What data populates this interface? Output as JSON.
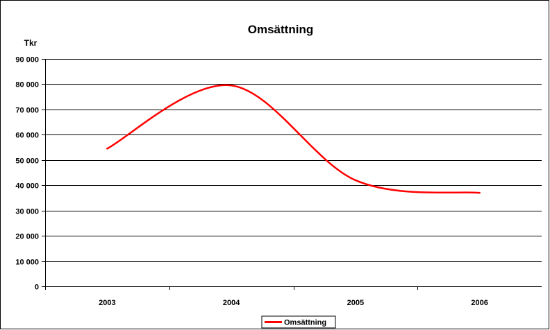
{
  "chart_data": {
    "type": "line",
    "title": "Omsättning",
    "ylabel": "Tkr",
    "xlabel": "",
    "categories": [
      "2003",
      "2004",
      "2005",
      "2006"
    ],
    "ylim": [
      0,
      90000
    ],
    "yticks": [
      0,
      10000,
      20000,
      30000,
      40000,
      50000,
      60000,
      70000,
      80000,
      90000
    ],
    "ytick_labels": [
      "0",
      "10 000",
      "20 000",
      "30 000",
      "40 000",
      "50 000",
      "60 000",
      "70 000",
      "80 000",
      "90 000"
    ],
    "grid": true,
    "legend": "bottom",
    "smooth": true,
    "series": [
      {
        "name": "Omsättning",
        "values": [
          54500,
          79500,
          42000,
          37000
        ],
        "color": "#ff0000"
      }
    ]
  }
}
